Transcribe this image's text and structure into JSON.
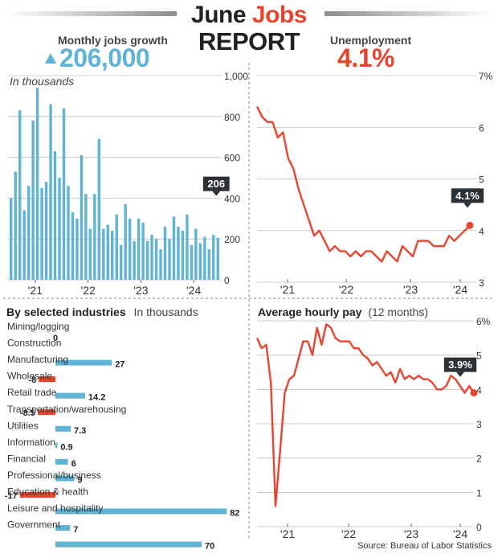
{
  "header": {
    "title_word1": "June",
    "title_word2": "Jobs",
    "title_word3": "REPORT",
    "jobs_label": "Monthly jobs growth",
    "jobs_value": "206,000",
    "unemp_label": "Unemployment",
    "unemp_value": "4.1%"
  },
  "colors": {
    "blue": "#5fb3d4",
    "red": "#e8442e",
    "dark": "#2d3135",
    "grid": "#bdbdbd"
  },
  "source": "Source: Bureau of Labor Statistics",
  "chart_data": [
    {
      "id": "jobs",
      "type": "bar",
      "title": "",
      "subtitle": "In thousands",
      "ylim": [
        0,
        1000
      ],
      "yticks": [
        "0",
        "200",
        "400",
        "600",
        "800",
        "1,000"
      ],
      "xticks": [
        "'21",
        "'22",
        "'23",
        "'24"
      ],
      "values": [
        400,
        530,
        830,
        340,
        460,
        780,
        940,
        450,
        480,
        860,
        630,
        500,
        840,
        460,
        330,
        300,
        610,
        420,
        250,
        420,
        690,
        250,
        270,
        240,
        320,
        170,
        370,
        300,
        190,
        300,
        280,
        190,
        220,
        200,
        150,
        260,
        200,
        310,
        260,
        240,
        320,
        170,
        250,
        180,
        210,
        150,
        220,
        206
      ],
      "callout": "206",
      "grid": true
    },
    {
      "id": "unemployment",
      "type": "line",
      "title": "",
      "ylim": [
        3,
        7
      ],
      "yticks": [
        "3",
        "4",
        "5",
        "6",
        "7%"
      ],
      "xticks": [
        "'21",
        "'22",
        "'23",
        "'24"
      ],
      "values": [
        6.4,
        6.2,
        6.1,
        6.1,
        5.8,
        5.9,
        5.4,
        5.2,
        4.8,
        4.5,
        4.2,
        3.9,
        4.0,
        3.8,
        3.6,
        3.7,
        3.6,
        3.6,
        3.5,
        3.6,
        3.5,
        3.6,
        3.6,
        3.5,
        3.4,
        3.6,
        3.5,
        3.4,
        3.7,
        3.6,
        3.5,
        3.8,
        3.8,
        3.8,
        3.7,
        3.7,
        3.7,
        3.9,
        3.8,
        3.9,
        4.0,
        4.1
      ],
      "callout": "4.1%",
      "grid": true
    },
    {
      "id": "industries",
      "type": "bar",
      "orientation": "horizontal",
      "title": "By selected industries",
      "subtitle": "In thousands",
      "categories": [
        "Mining/logging",
        "Construction",
        "Manufacturing",
        "Wholesale",
        "Retail trade",
        "Transportation/warehousing",
        "Utilities",
        "Information",
        "Financial",
        "Professional/business",
        "Education & health",
        "Leisure and hospitality",
        "Government"
      ],
      "values": [
        0,
        27,
        -8,
        14.2,
        -8.5,
        7.3,
        0.9,
        6,
        9,
        -17,
        82,
        7,
        70
      ],
      "value_labels": [
        "0",
        "27",
        "-8",
        "14.2",
        "-8.5",
        "7.3",
        "0.9",
        "6",
        "9",
        "-17",
        "82",
        "7",
        "70"
      ]
    },
    {
      "id": "wages",
      "type": "line",
      "title": "Average hourly pay",
      "subtitle": "(12 months)",
      "ylim": [
        0,
        6
      ],
      "yticks": [
        "0",
        "1",
        "2",
        "3",
        "4",
        "5",
        "6%"
      ],
      "xticks": [
        "'21",
        "'22",
        "'23",
        "'24"
      ],
      "values": [
        5.5,
        5.2,
        5.3,
        4.2,
        0.6,
        2.2,
        3.9,
        4.3,
        4.4,
        4.9,
        5.4,
        5.4,
        5.0,
        5.8,
        5.3,
        5.9,
        5.8,
        5.5,
        5.4,
        5.4,
        5.4,
        5.2,
        5.2,
        5.0,
        4.9,
        4.7,
        4.8,
        4.6,
        4.4,
        4.5,
        4.2,
        4.6,
        4.3,
        4.4,
        4.3,
        4.4,
        4.3,
        4.3,
        4.2,
        4.0,
        4.0,
        4.1,
        4.4,
        4.3,
        4.1,
        3.9,
        4.1,
        3.9
      ],
      "callout": "3.9%",
      "grid": true
    }
  ]
}
